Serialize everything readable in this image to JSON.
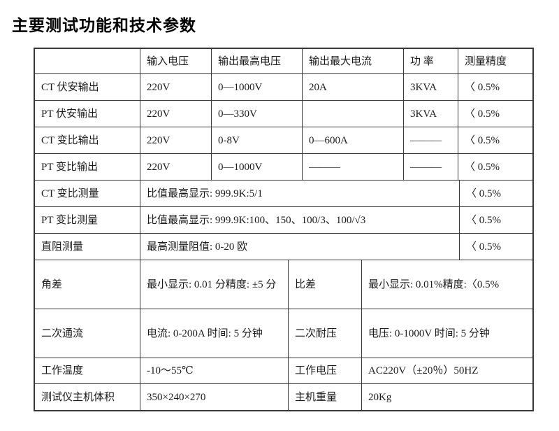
{
  "page_title": "主要测试功能和技术参数",
  "table": {
    "header": [
      "",
      "输入电压",
      "输出最高电压",
      "输出最大电流",
      "功 率",
      "测量精度"
    ],
    "rows": [
      {
        "label": "CT 伏安输出",
        "input_voltage": "220V",
        "max_output_voltage": "0—1000V",
        "max_output_current": "20A",
        "power": "3KVA",
        "accuracy": "〈 0.5%"
      },
      {
        "label": "PT 伏安输出",
        "input_voltage": "220V",
        "max_output_voltage": "0—330V",
        "max_output_current": "",
        "power": "3KVA",
        "accuracy": "〈 0.5%"
      },
      {
        "label": "CT 变比输出",
        "input_voltage": "220V",
        "max_output_voltage": "0-8V",
        "max_output_current": "0—600A",
        "power": "———",
        "accuracy": "〈 0.5%"
      },
      {
        "label": "PT 变比输出",
        "input_voltage": "220V",
        "max_output_voltage": "0—1000V",
        "max_output_current": "———",
        "power": "———",
        "accuracy": "〈 0.5%"
      }
    ],
    "merged_rows": [
      {
        "label": "CT 变比测量",
        "value": "比值最高显示: 999.9K:5/1",
        "accuracy": "〈 0.5%"
      },
      {
        "label": "PT 变比测量",
        "value": "比值最高显示: 999.9K:100、150、100/3、100/√3",
        "accuracy": "〈 0.5%"
      },
      {
        "label": "直阻测量",
        "value": "最高测量阻值: 0-20 欧",
        "accuracy": "〈 0.5%"
      }
    ],
    "dual_rows": [
      {
        "label1": "角差",
        "value1": "最小显示: 0.01 分精度: ±5 分",
        "label2": "比差",
        "value2": "最小显示: 0.01%精度:〈0.5%"
      },
      {
        "label1": "二次通流",
        "value1": "电流: 0-200A 时间: 5 分钟",
        "label2": "二次耐压",
        "value2": "电压: 0-1000V 时间: 5 分钟"
      },
      {
        "label1": "工作温度",
        "value1": "-10～55℃",
        "label2": "工作电压",
        "value2": "AC220V（±20％）50HZ"
      },
      {
        "label1": "测试仪主机体积",
        "value1": "350×240×270",
        "label2": "主机重量",
        "value2": "20Kg"
      }
    ]
  }
}
